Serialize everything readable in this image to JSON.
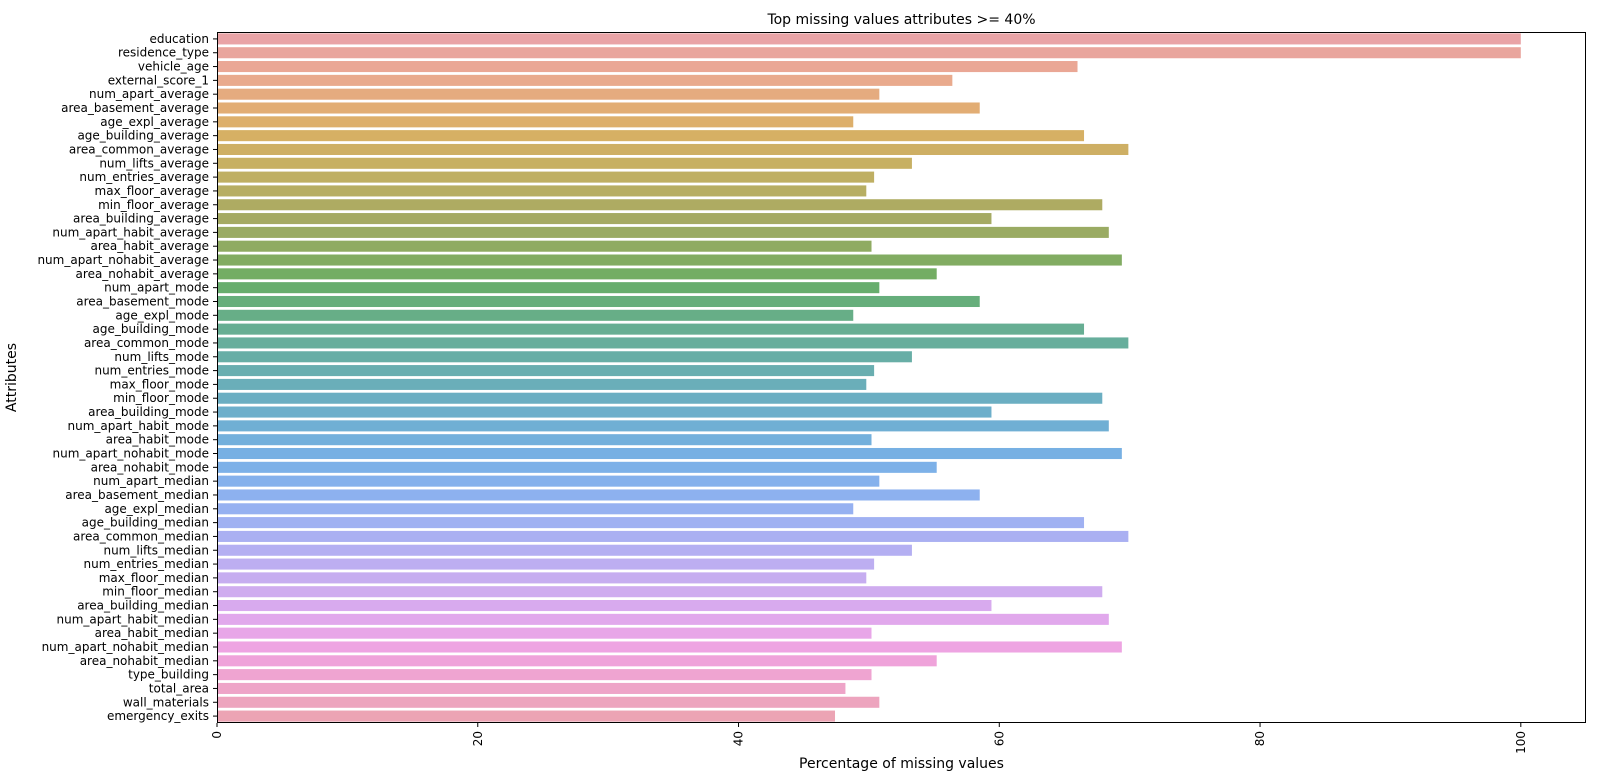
{
  "chart_data": {
    "type": "bar",
    "orientation": "horizontal",
    "title": "Top missing values attributes >= 40%",
    "xlabel": "Percentage of missing values",
    "ylabel": "Attributes",
    "xlim": [
      0,
      105
    ],
    "xticks": [
      0,
      20,
      40,
      60,
      80,
      100
    ],
    "grid": false,
    "categories": [
      "education",
      "residence_type",
      "vehicle_age",
      "external_score_1",
      "num_apart_average",
      "area_basement_average",
      "age_expl_average",
      "age_building_average",
      "area_common_average",
      "num_lifts_average",
      "num_entries_average",
      "max_floor_average",
      "min_floor_average",
      "area_building_average",
      "num_apart_habit_average",
      "area_habit_average",
      "num_apart_nohabit_average",
      "area_nohabit_average",
      "num_apart_mode",
      "area_basement_mode",
      "age_expl_mode",
      "age_building_mode",
      "area_common_mode",
      "num_lifts_mode",
      "num_entries_mode",
      "max_floor_mode",
      "min_floor_mode",
      "area_building_mode",
      "num_apart_habit_mode",
      "area_habit_mode",
      "num_apart_nohabit_mode",
      "area_nohabit_mode",
      "num_apart_median",
      "area_basement_median",
      "age_expl_median",
      "age_building_median",
      "area_common_median",
      "num_lifts_median",
      "num_entries_median",
      "max_floor_median",
      "min_floor_median",
      "area_building_median",
      "num_apart_habit_median",
      "area_habit_median",
      "num_apart_nohabit_median",
      "area_nohabit_median",
      "type_building",
      "total_area",
      "wall_materials",
      "emergency_exits"
    ],
    "values": [
      100.0,
      100.0,
      66.0,
      56.4,
      50.8,
      58.5,
      48.8,
      66.5,
      69.9,
      53.3,
      50.4,
      49.8,
      67.9,
      59.4,
      68.4,
      50.2,
      69.4,
      55.2,
      50.8,
      58.5,
      48.8,
      66.5,
      69.9,
      53.3,
      50.4,
      49.8,
      67.9,
      59.4,
      68.4,
      50.2,
      69.4,
      55.2,
      50.8,
      58.5,
      48.8,
      66.5,
      69.9,
      53.3,
      50.4,
      49.8,
      67.9,
      59.4,
      68.4,
      50.2,
      69.4,
      55.2,
      50.2,
      48.2,
      50.8,
      47.4
    ],
    "colors": [
      "#e9a3a6",
      "#e9a59d",
      "#eaa795",
      "#e9aa8d",
      "#e5ab7f",
      "#e2ad74",
      "#ddaf6b",
      "#d6b064",
      "#ceaf64",
      "#c7b063",
      "#bfaf63",
      "#b7ae63",
      "#aeab62",
      "#a5aa63",
      "#9aab63",
      "#8fab62",
      "#82ac62",
      "#73ad63",
      "#67ad6d",
      "#66ae7b",
      "#67ae87",
      "#67ae93",
      "#67ae9c",
      "#68aea6",
      "#69aeb0",
      "#6aaeb9",
      "#6baec2",
      "#6dafcb",
      "#70afd4",
      "#73b0dc",
      "#77b0e3",
      "#7db1e8",
      "#85b1ec",
      "#8db1ef",
      "#96b1f1",
      "#a0b1f2",
      "#aab0f2",
      "#b4aff2",
      "#bdaef1",
      "#c6adf0",
      "#cfacef",
      "#d8aaee",
      "#e1a8ec",
      "#e8a6e8",
      "#eea4e2",
      "#efa3da",
      "#efa4d1",
      "#eea4c8",
      "#eda4be",
      "#eca4b4"
    ]
  }
}
